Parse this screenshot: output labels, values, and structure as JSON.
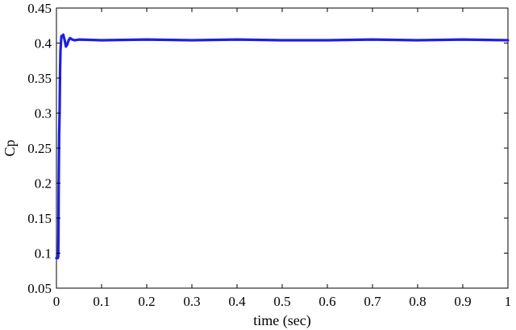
{
  "chart_data": {
    "type": "line",
    "title": "",
    "xlabel": "time (sec)",
    "ylabel": "Cp",
    "xlim": [
      0,
      1
    ],
    "ylim": [
      0.05,
      0.45
    ],
    "xticks": [
      0,
      0.1,
      0.2,
      0.3,
      0.4,
      0.5,
      0.6,
      0.7,
      0.8,
      0.9,
      1
    ],
    "xtick_labels": [
      "0",
      "0.1",
      "0.2",
      "0.3",
      "0.4",
      "0.5",
      "0.6",
      "0.7",
      "0.8",
      "0.9",
      "1"
    ],
    "yticks": [
      0.05,
      0.1,
      0.15,
      0.2,
      0.25,
      0.3,
      0.35,
      0.4,
      0.45
    ],
    "ytick_labels": [
      "0.05",
      "0.1",
      "0.15",
      "0.2",
      "0.25",
      "0.3",
      "0.35",
      "0.4",
      "0.45"
    ],
    "grid": false,
    "legend": "none",
    "series": [
      {
        "color": "#1f1fe0",
        "x": [
          0,
          0.003,
          0.004,
          0.0045,
          0.005,
          0.006,
          0.007,
          0.008,
          0.009,
          0.011,
          0.013,
          0.015,
          0.018,
          0.021,
          0.024,
          0.027,
          0.03,
          0.035,
          0.04,
          0.05,
          0.1,
          0.2,
          0.3,
          0.4,
          0.5,
          0.6,
          0.7,
          0.8,
          0.9,
          1.0
        ],
        "y": [
          0.093,
          0.093,
          0.095,
          0.13,
          0.2,
          0.27,
          0.3,
          0.36,
          0.39,
          0.41,
          0.41,
          0.412,
          0.405,
          0.395,
          0.398,
          0.404,
          0.407,
          0.405,
          0.404,
          0.405,
          0.404,
          0.405,
          0.404,
          0.405,
          0.404,
          0.404,
          0.405,
          0.404,
          0.405,
          0.404
        ]
      }
    ]
  }
}
